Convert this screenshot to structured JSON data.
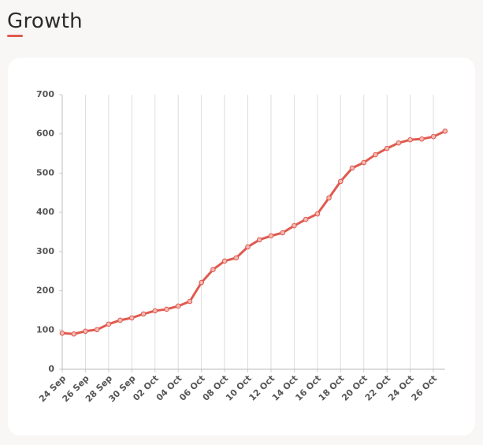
{
  "chart_data": {
    "type": "line",
    "title": "Growth",
    "categories": [
      "24 Sep",
      null,
      "26 Sep",
      null,
      "28 Sep",
      null,
      "30 Sep",
      null,
      "02 Oct",
      null,
      "04 Oct",
      null,
      "06 Oct",
      null,
      "08 Oct",
      null,
      "10 Oct",
      null,
      "12 Oct",
      null,
      "14 Oct",
      null,
      "16 Oct",
      null,
      "18 Oct",
      null,
      "20 Oct",
      null,
      "22 Oct",
      null,
      "24 Oct",
      null,
      "26 Oct",
      null
    ],
    "series": [
      {
        "name": "Growth",
        "color": "#e05a4f",
        "values": [
          92,
          90,
          97,
          101,
          115,
          125,
          131,
          141,
          149,
          153,
          161,
          173,
          221,
          254,
          276,
          284,
          312,
          330,
          340,
          348,
          366,
          382,
          396,
          437,
          479,
          513,
          527,
          547,
          563,
          577,
          585,
          587,
          593,
          607
        ]
      }
    ],
    "ylim": [
      0,
      700
    ],
    "yticks": [
      0,
      100,
      200,
      300,
      400,
      500,
      600,
      700
    ],
    "grid": true
  }
}
